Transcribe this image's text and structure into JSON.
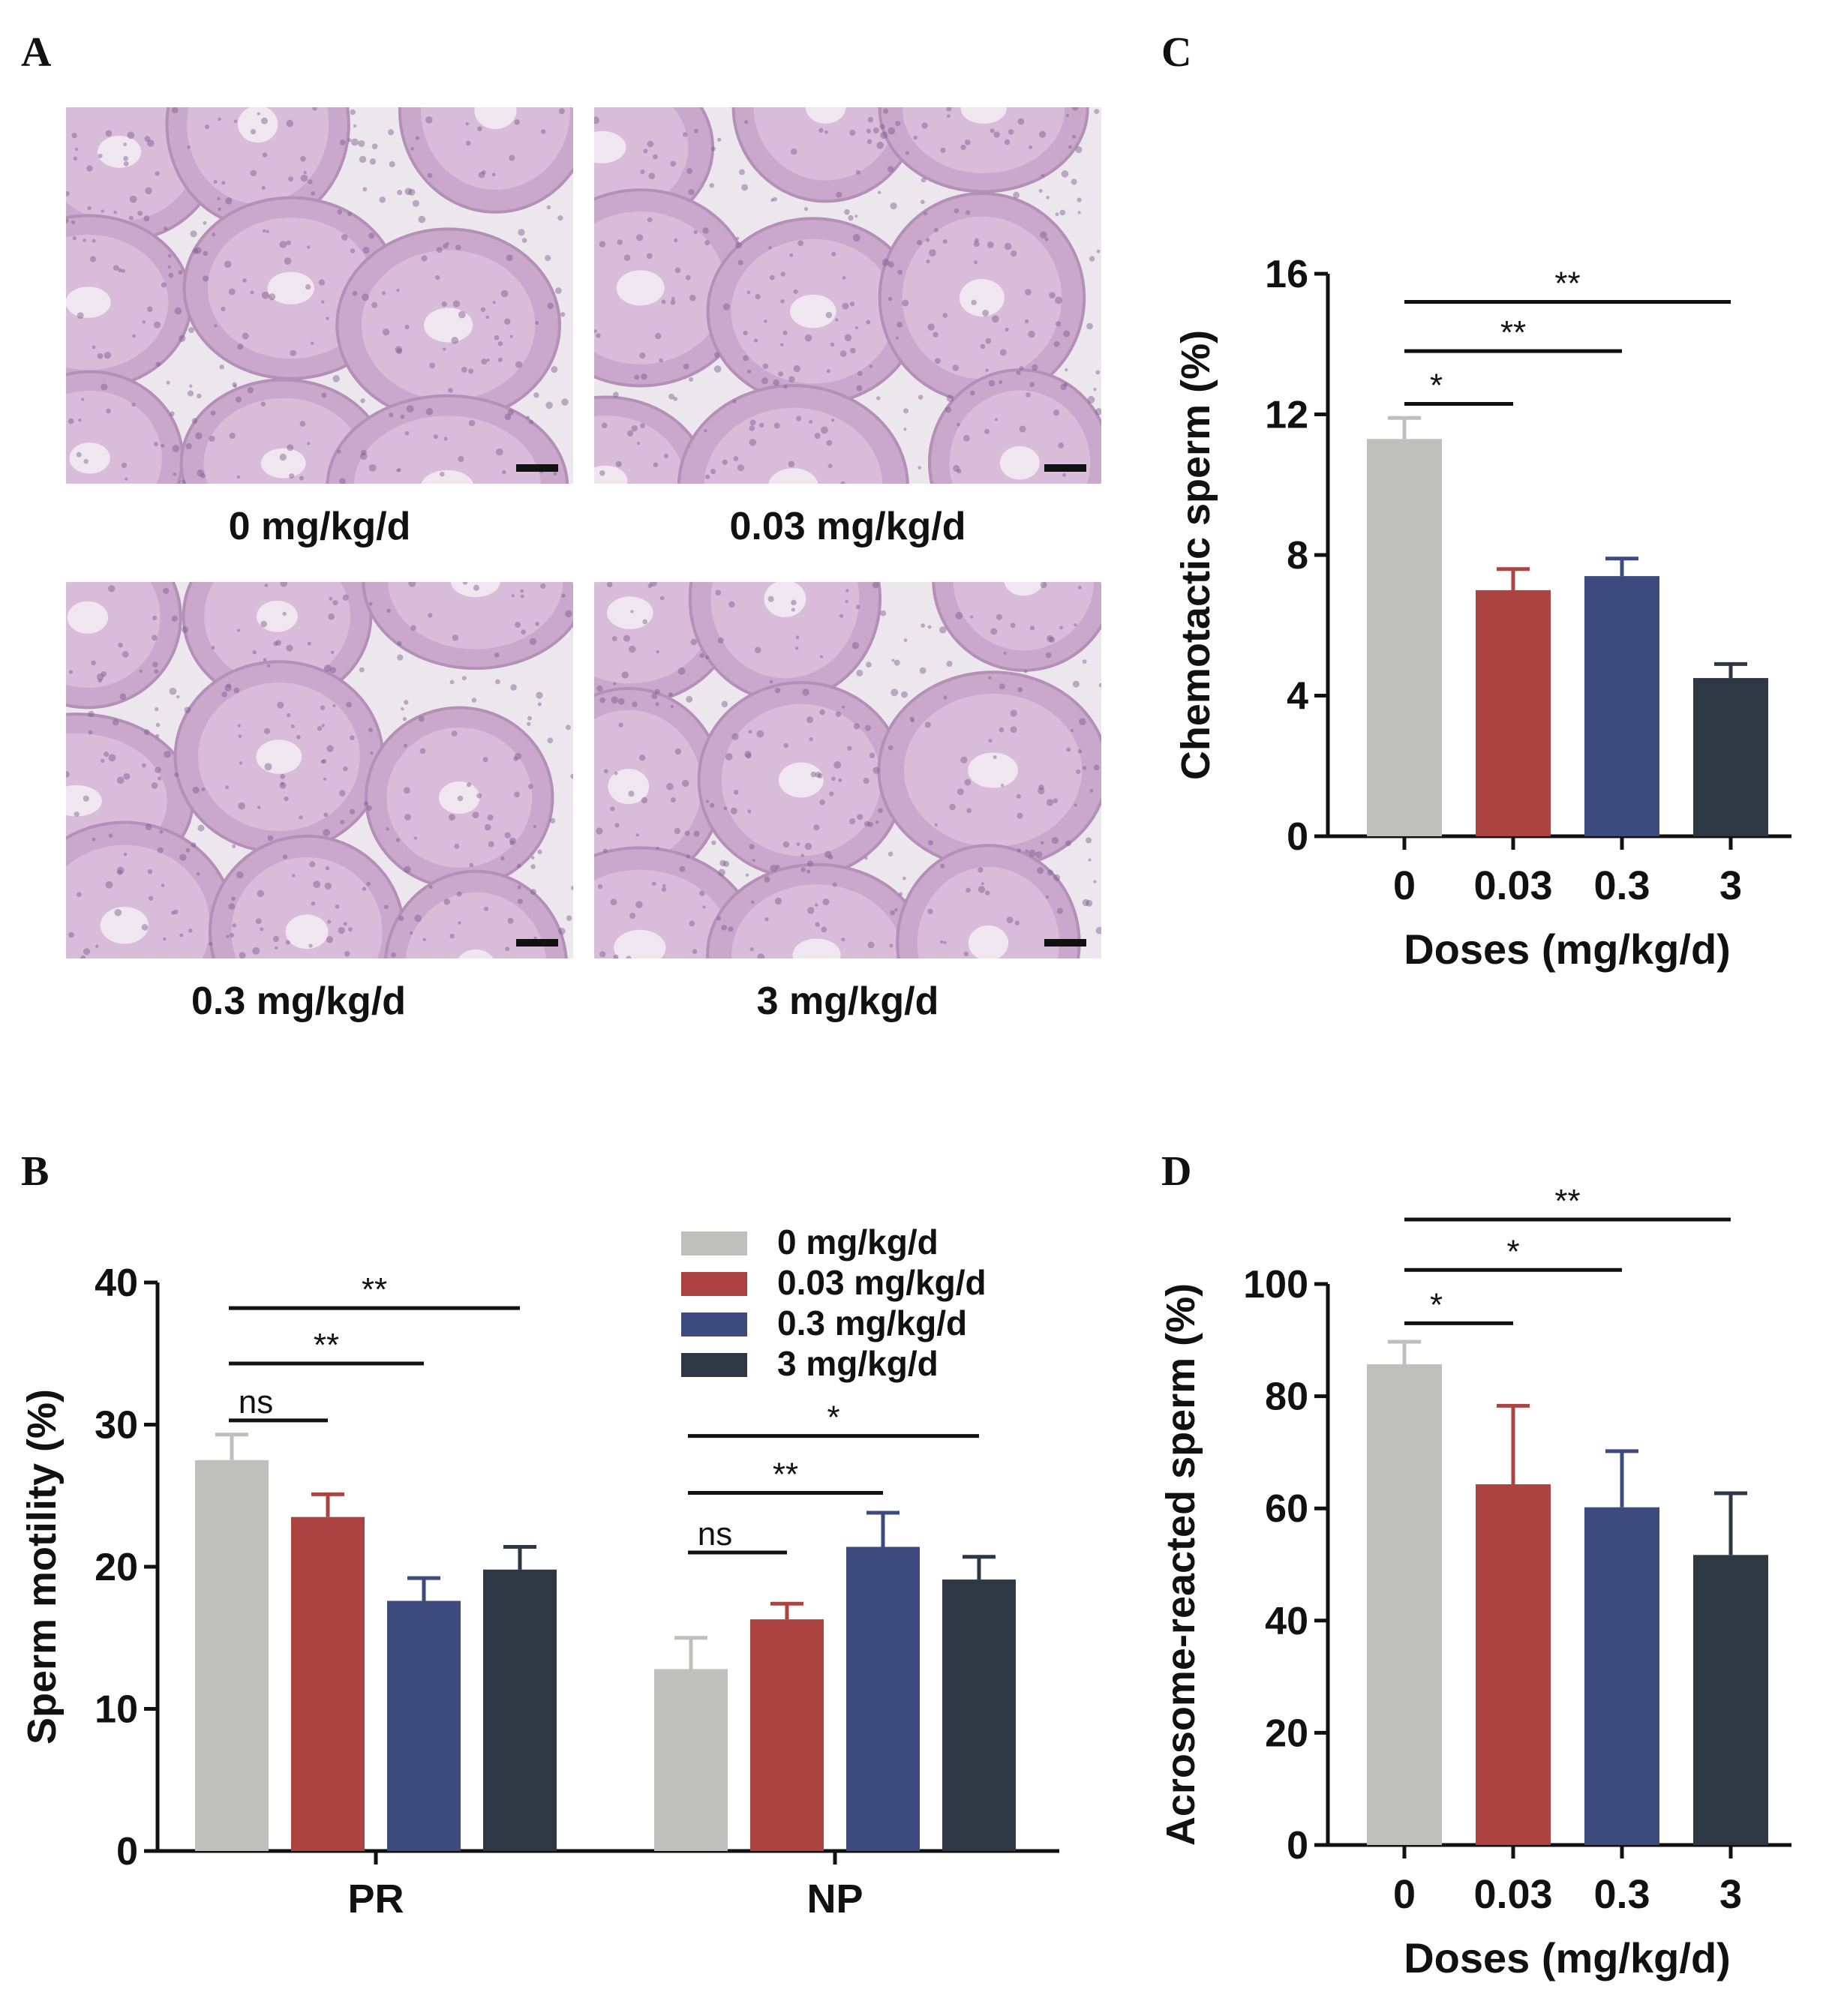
{
  "panels": {
    "A": {
      "letter": "A",
      "images": [
        {
          "caption": "0 mg/kg/d"
        },
        {
          "caption": "0.03 mg/kg/d"
        },
        {
          "caption": "0.3 mg/kg/d"
        },
        {
          "caption": "3 mg/kg/d"
        }
      ]
    },
    "B": {
      "letter": "B"
    },
    "C": {
      "letter": "C"
    },
    "D": {
      "letter": "D"
    }
  },
  "colors": {
    "dose_0": "#bfc0bb",
    "dose_003": "#ab4441",
    "dose_03": "#3c4a7e",
    "dose_3": "#2e3744",
    "tissue_pink": "#dcc2da",
    "tissue_bg": "#ece7ec"
  },
  "chart_data": [
    {
      "id": "B",
      "type": "bar",
      "ylabel": "Sperm motility  (%)",
      "ylim": [
        0,
        40
      ],
      "yticks": [
        0,
        10,
        20,
        30,
        40
      ],
      "categories": [
        "PR",
        "NP"
      ],
      "legend": {
        "placement": "top-right"
      },
      "series": [
        {
          "name": "0 mg/kg/d",
          "values": [
            27.5,
            12.8
          ],
          "errors": [
            1.8,
            2.2
          ]
        },
        {
          "name": "0.03 mg/kg/d",
          "values": [
            23.5,
            16.3
          ],
          "errors": [
            1.6,
            1.1
          ]
        },
        {
          "name": "0.3 mg/kg/d",
          "values": [
            17.6,
            21.4
          ],
          "errors": [
            1.6,
            2.4
          ]
        },
        {
          "name": "3 mg/kg/d",
          "values": [
            19.8,
            19.1
          ],
          "errors": [
            1.6,
            1.6
          ]
        }
      ],
      "annotations": [
        {
          "group": 0,
          "from": 0,
          "to": 1,
          "label": "ns",
          "level": 30.3
        },
        {
          "group": 0,
          "from": 0,
          "to": 2,
          "label": "**",
          "level": 34.3
        },
        {
          "group": 0,
          "from": 0,
          "to": 3,
          "label": "**",
          "level": 38.2
        },
        {
          "group": 1,
          "from": 0,
          "to": 1,
          "label": "ns",
          "level": 21.0
        },
        {
          "group": 1,
          "from": 0,
          "to": 2,
          "label": "**",
          "level": 25.2
        },
        {
          "group": 1,
          "from": 0,
          "to": 3,
          "label": "*",
          "level": 29.2
        }
      ]
    },
    {
      "id": "C",
      "type": "bar",
      "xlabel": "Doses (mg/kg/d)",
      "ylabel": "Chemotactic sperm (%)",
      "ylim": [
        0,
        16
      ],
      "yticks": [
        0,
        4,
        8,
        12,
        16
      ],
      "categories": [
        "0",
        "0.03",
        "0.3",
        "3"
      ],
      "values": [
        11.3,
        7.0,
        7.4,
        4.5
      ],
      "errors": [
        0.6,
        0.6,
        0.5,
        0.4
      ],
      "annotations": [
        {
          "from": 0,
          "to": 1,
          "label": "*",
          "level": 12.3
        },
        {
          "from": 0,
          "to": 2,
          "label": "**",
          "level": 13.8
        },
        {
          "from": 0,
          "to": 3,
          "label": "**",
          "level": 15.2
        }
      ]
    },
    {
      "id": "D",
      "type": "bar",
      "xlabel": "Doses (mg/kg/d)",
      "ylabel": "Acrosome-reacted sperm (%)",
      "ylim": [
        0,
        100
      ],
      "yticks": [
        0,
        20,
        40,
        60,
        80,
        100
      ],
      "categories": [
        "0",
        "0.03",
        "0.3",
        "3"
      ],
      "values": [
        85.7,
        64.3,
        60.2,
        51.7
      ],
      "errors": [
        4.0,
        14.0,
        10.0,
        11.0
      ],
      "annotations": [
        {
          "from": 0,
          "to": 1,
          "label": "*",
          "level": 93.0
        },
        {
          "from": 0,
          "to": 2,
          "label": "*",
          "level": 102.5
        },
        {
          "from": 0,
          "to": 3,
          "label": "**",
          "level": 111.5
        }
      ]
    }
  ]
}
